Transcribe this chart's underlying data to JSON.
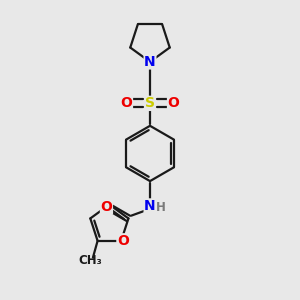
{
  "bg_color": "#e8e8e8",
  "bond_color": "#1a1a1a",
  "bond_width": 1.6,
  "atom_colors": {
    "N": "#0000ee",
    "O": "#ee0000",
    "S": "#cccc00",
    "H": "#7a7a7a",
    "C": "#1a1a1a"
  },
  "font_size": 10,
  "font_size_small": 8.5
}
